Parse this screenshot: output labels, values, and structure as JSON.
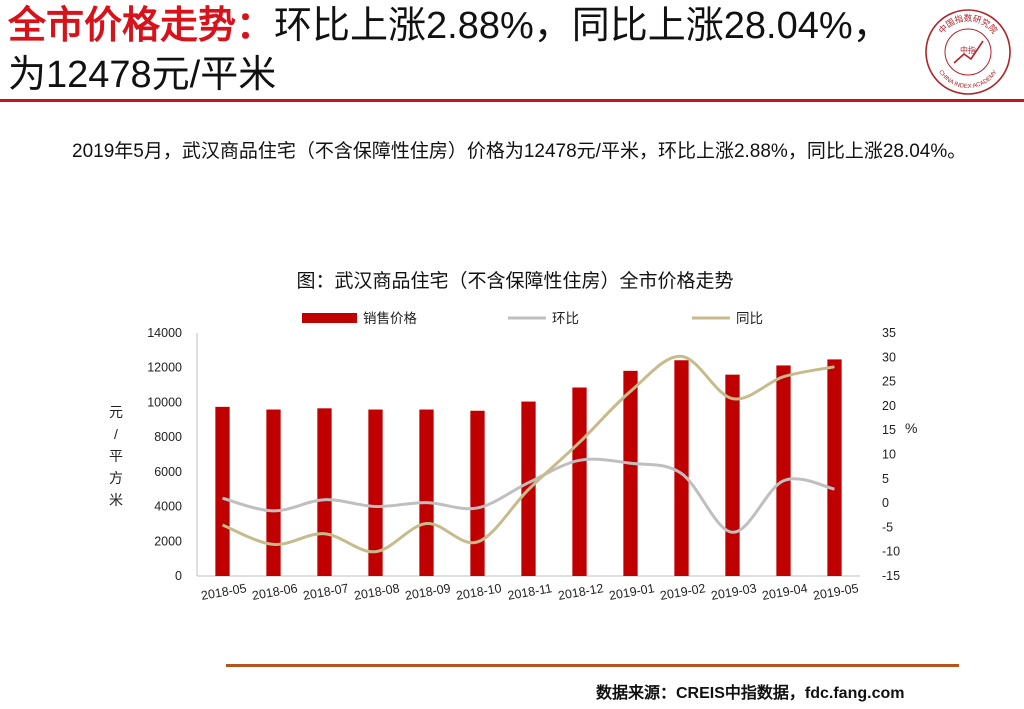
{
  "header": {
    "title_highlight": "全市价格走势：",
    "title_rest": "环比上涨2.88%，同比上涨28.04%，为12478元/平米"
  },
  "logo": {
    "name": "China Index Academy",
    "seal_text": "中国指数研究院",
    "seal_english": "CHINA INDEX ACADEMY",
    "seal_center": "中指"
  },
  "summary": {
    "text": "2019年5月，武汉商品住宅（不含保障性住房）价格为12478元/平米，环比上涨2.88%，同比上涨28.04%。"
  },
  "footer": {
    "source": "数据来源：CREIS中指数据，fdc.fang.com"
  },
  "colors": {
    "accent_red": "#d8121b",
    "bar": "#c00000",
    "mom_line": "#bfbfbf",
    "yoy_line": "#c6bb8c",
    "bottom_rule": "#b5541c"
  },
  "chart_data": {
    "type": "bar",
    "title": "图：武汉商品住宅（不含保障性住房）全市价格走势",
    "categories": [
      "2018-05",
      "2018-06",
      "2018-07",
      "2018-08",
      "2018-09",
      "2018-10",
      "2018-11",
      "2018-12",
      "2019-01",
      "2019-02",
      "2019-03",
      "2019-04",
      "2019-05"
    ],
    "series": [
      {
        "name": "销售价格",
        "type": "bar",
        "axis": "left",
        "values": [
          9745,
          9590,
          9660,
          9590,
          9590,
          9520,
          10050,
          10860,
          11820,
          12430,
          11600,
          12130,
          12478
        ]
      },
      {
        "name": "环比",
        "type": "line",
        "axis": "right",
        "values": [
          1.0,
          -1.6,
          0.7,
          -0.7,
          0.1,
          -1.0,
          4.2,
          8.8,
          8.2,
          6.1,
          -6.0,
          4.6,
          2.88
        ]
      },
      {
        "name": "同比",
        "type": "line",
        "axis": "right",
        "values": [
          -4.5,
          -8.5,
          -6.3,
          -10.0,
          -4.2,
          -8.0,
          2.8,
          12.5,
          23.0,
          30.2,
          21.5,
          26.0,
          28.04
        ]
      }
    ],
    "ylabel": "元/平方米",
    "ylim": [
      0,
      14000
    ],
    "yticks": [
      0,
      2000,
      4000,
      6000,
      8000,
      10000,
      12000,
      14000
    ],
    "y2label": "%",
    "y2lim": [
      -15,
      35
    ],
    "y2ticks": [
      -15,
      -10,
      -5,
      0,
      5,
      10,
      15,
      20,
      25,
      30,
      35
    ],
    "legend_position": "top"
  }
}
